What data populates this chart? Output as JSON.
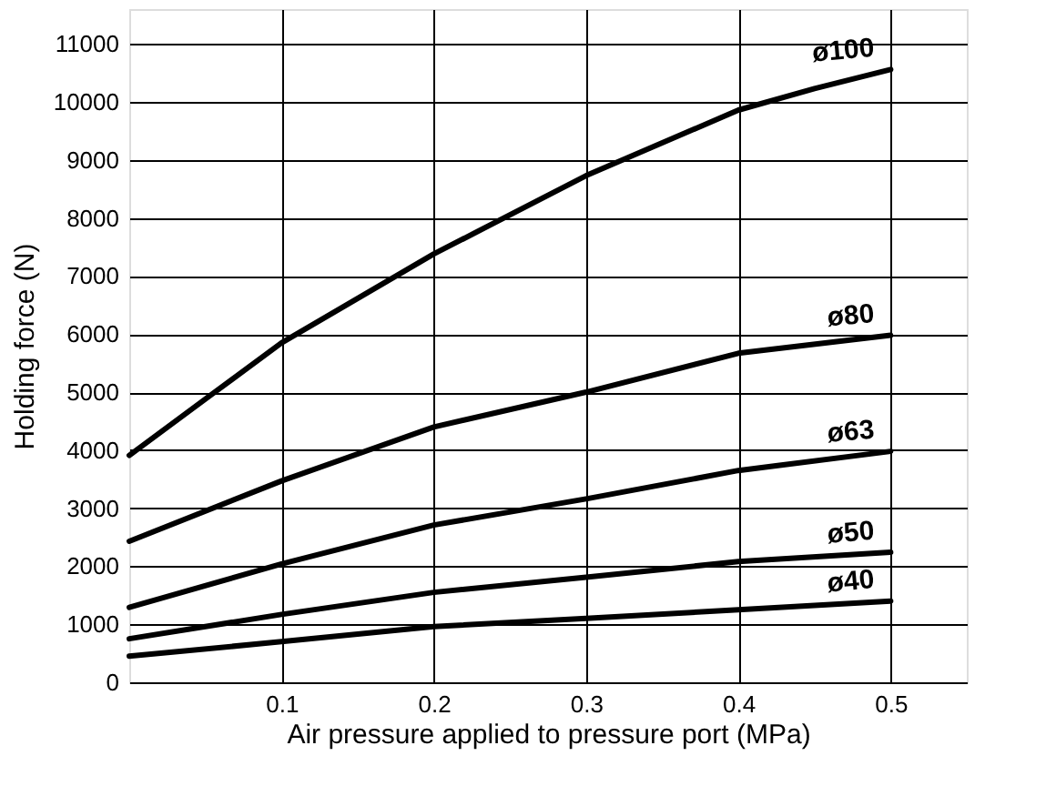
{
  "chart_data": {
    "type": "line",
    "xlabel": "Air pressure applied to pressure port (MPa)",
    "ylabel": "Holding force (N)",
    "xlim": [
      0,
      0.55
    ],
    "xticks": [
      0.1,
      0.2,
      0.3,
      0.4,
      0.5
    ],
    "ylim": [
      0,
      11600
    ],
    "yticks": [
      0,
      1000,
      2000,
      3000,
      4000,
      5000,
      6000,
      7000,
      8000,
      9000,
      10000,
      11000
    ],
    "grid": true,
    "legend": false,
    "marker": "none",
    "line_style": "solid",
    "x": [
      0,
      0.05,
      0.1,
      0.2,
      0.3,
      0.4,
      0.45,
      0.5
    ],
    "series": [
      {
        "name": "ø100",
        "color": "#000000",
        "values": [
          3910,
          4880,
          5850,
          7380,
          8730,
          9860,
          10230,
          10560
        ]
      },
      {
        "name": "ø80",
        "color": "#000000",
        "values": [
          2430,
          null,
          3470,
          4400,
          5000,
          5670,
          null,
          5980
        ]
      },
      {
        "name": "ø63",
        "color": "#000000",
        "values": [
          1290,
          null,
          2040,
          2710,
          3160,
          3650,
          null,
          3980
        ]
      },
      {
        "name": "ø50",
        "color": "#000000",
        "values": [
          750,
          null,
          1170,
          1550,
          1810,
          2080,
          null,
          2240
        ]
      },
      {
        "name": "ø40",
        "color": "#000000",
        "values": [
          450,
          null,
          700,
          960,
          1100,
          1250,
          null,
          1400
        ]
      }
    ]
  }
}
